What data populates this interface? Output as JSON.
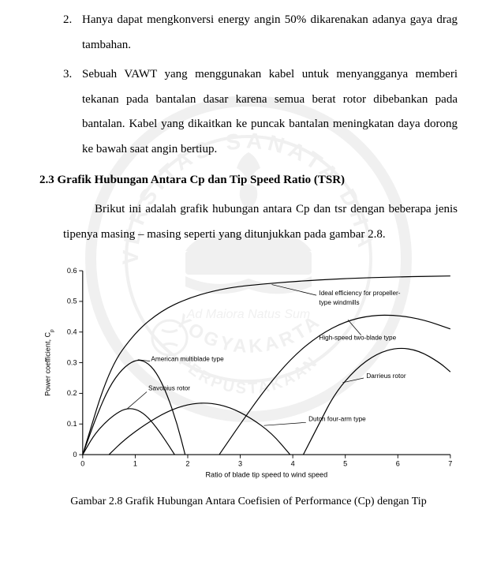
{
  "list": {
    "item2": {
      "num": "2.",
      "text": "Hanya dapat mengkonversi energy angin 50% dikarenakan adanya gaya drag tambahan."
    },
    "item3": {
      "num": "3.",
      "text": "Sebuah VAWT yang menggunakan kabel untuk menyangganya memberi tekanan pada bantalan dasar karena semua berat rotor dibebankan pada bantalan. Kabel yang dikaitkan ke puncak bantalan meningkatan daya dorong ke bawah saat angin bertiup."
    }
  },
  "heading": "2.3 Grafik Hubungan Antara Cp dan Tip Speed Ratio (TSR)",
  "paragraph": "Brikut ini adalah grafik hubungan antara Cp dan tsr dengan beberapa jenis tipenya masing – masing seperti yang ditunjukkan pada gambar 2.8.",
  "caption": "Gambar 2.8 Grafik Hubungan Antara Coefisien of Performance (Cp) dengan Tip",
  "chart": {
    "type": "line",
    "xlabel": "Ratio of blade tip speed to wind speed",
    "ylabel": "Power coefficient, C",
    "ylabel_sub": "p",
    "xlim": [
      0,
      7
    ],
    "ylim": [
      0,
      0.6
    ],
    "xticks": [
      0,
      1,
      2,
      3,
      4,
      5,
      6,
      7
    ],
    "yticks": [
      0,
      0.1,
      0.2,
      0.3,
      0.4,
      0.5,
      0.6
    ],
    "bg": "#ffffff",
    "axis_color": "#000000",
    "curve_color": "#000000",
    "curves": {
      "ideal": {
        "label1": "Ideal efficiency for propeller-",
        "label2": "type windmills",
        "points": [
          [
            0,
            0
          ],
          [
            0.5,
            0.28
          ],
          [
            1,
            0.4
          ],
          [
            1.5,
            0.47
          ],
          [
            2,
            0.51
          ],
          [
            2.5,
            0.535
          ],
          [
            3,
            0.55
          ],
          [
            4,
            0.565
          ],
          [
            5,
            0.575
          ],
          [
            6,
            0.58
          ],
          [
            7,
            0.583
          ]
        ]
      },
      "american": {
        "label": "American multiblade type",
        "points": [
          [
            0,
            0
          ],
          [
            0.25,
            0.12
          ],
          [
            0.5,
            0.22
          ],
          [
            0.75,
            0.28
          ],
          [
            1,
            0.31
          ],
          [
            1.2,
            0.305
          ],
          [
            1.4,
            0.27
          ],
          [
            1.6,
            0.2
          ],
          [
            1.8,
            0.1
          ],
          [
            1.95,
            0
          ]
        ]
      },
      "savonius": {
        "label": "Savonius rotor",
        "points": [
          [
            0,
            0
          ],
          [
            0.2,
            0.06
          ],
          [
            0.4,
            0.1
          ],
          [
            0.6,
            0.13
          ],
          [
            0.8,
            0.15
          ],
          [
            1,
            0.15
          ],
          [
            1.2,
            0.13
          ],
          [
            1.4,
            0.09
          ],
          [
            1.6,
            0.04
          ],
          [
            1.75,
            0
          ]
        ]
      },
      "dutch": {
        "label": "Dutch four-arm type",
        "points": [
          [
            0.5,
            0
          ],
          [
            0.8,
            0.05
          ],
          [
            1.2,
            0.1
          ],
          [
            1.6,
            0.14
          ],
          [
            2,
            0.165
          ],
          [
            2.4,
            0.17
          ],
          [
            2.8,
            0.155
          ],
          [
            3.2,
            0.12
          ],
          [
            3.6,
            0.07
          ],
          [
            3.95,
            0
          ]
        ]
      },
      "darrieus": {
        "label": "Darrieus rotor",
        "points": [
          [
            4.2,
            0
          ],
          [
            4.5,
            0.1
          ],
          [
            4.8,
            0.2
          ],
          [
            5.2,
            0.28
          ],
          [
            5.6,
            0.33
          ],
          [
            6,
            0.35
          ],
          [
            6.4,
            0.34
          ],
          [
            6.8,
            0.3
          ],
          [
            7,
            0.27
          ]
        ]
      },
      "highspeed": {
        "label": "High-speed two-blade type",
        "points": [
          [
            2.6,
            0
          ],
          [
            3,
            0.1
          ],
          [
            3.5,
            0.22
          ],
          [
            4,
            0.32
          ],
          [
            4.5,
            0.39
          ],
          [
            5,
            0.435
          ],
          [
            5.5,
            0.455
          ],
          [
            6,
            0.455
          ],
          [
            6.5,
            0.44
          ],
          [
            7,
            0.41
          ]
        ]
      }
    }
  }
}
